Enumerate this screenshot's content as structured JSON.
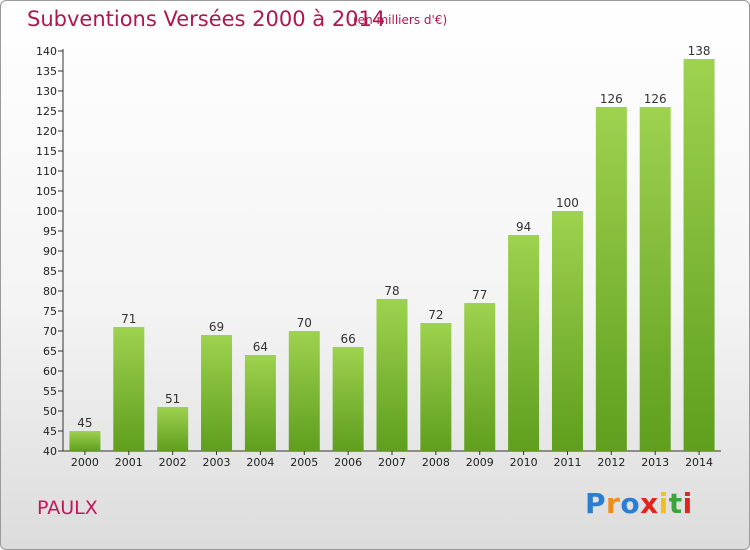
{
  "chart_data": {
    "type": "bar",
    "title": "Subventions Versées 2000 à 2014",
    "subtitle": "(en milliers d'€)",
    "categories": [
      "2000",
      "2001",
      "2002",
      "2003",
      "2004",
      "2005",
      "2006",
      "2007",
      "2008",
      "2009",
      "2010",
      "2011",
      "2012",
      "2013",
      "2014"
    ],
    "values": [
      45,
      71,
      51,
      69,
      64,
      70,
      66,
      78,
      72,
      77,
      94,
      100,
      126,
      126,
      138
    ],
    "ylim": [
      40,
      140
    ],
    "ytick_step": 5,
    "grid": false,
    "bar_color": "#7fbf3f"
  },
  "commune": "PAULX",
  "logo": {
    "letters": [
      "P",
      "r",
      "o",
      "x",
      "i",
      "t",
      "i"
    ],
    "colors": [
      "#2a7fd4",
      "#f08c1c",
      "#2a7fd4",
      "#e0261c",
      "#f0c01c",
      "#3aa53a",
      "#e0261c"
    ]
  }
}
